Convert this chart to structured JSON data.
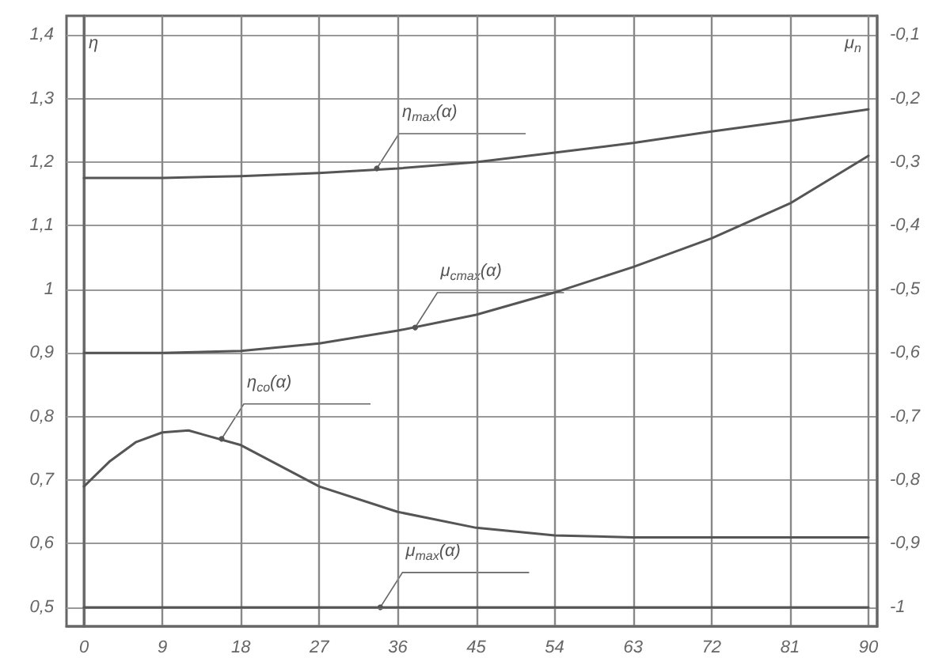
{
  "chart_data": {
    "type": "line",
    "ylabel": "η",
    "y2label": "μ$_{n}$",
    "xlim": [
      -2,
      91
    ],
    "xticks": [
      0,
      9,
      18,
      27,
      36,
      45,
      54,
      63,
      72,
      81,
      90
    ],
    "ylim": [
      0.47,
      1.43
    ],
    "yticks": [
      {
        "value": 0.5,
        "label": "0,5"
      },
      {
        "value": 0.6,
        "label": "0,6"
      },
      {
        "value": 0.7,
        "label": "0,7"
      },
      {
        "value": 0.8,
        "label": "0,8"
      },
      {
        "value": 0.9,
        "label": "0,9"
      },
      {
        "value": 1,
        "label": "1"
      },
      {
        "value": 1.1,
        "label": "1,1"
      },
      {
        "value": 1.2,
        "label": "1,2"
      },
      {
        "value": 1.3,
        "label": "1,3"
      },
      {
        "value": 1.4,
        "label": "1,4"
      }
    ],
    "y2lim": [
      -1.03,
      -0.07
    ],
    "y2ticks": [
      {
        "value": -1,
        "label": "-1"
      },
      {
        "value": -0.9,
        "label": "-0,9"
      },
      {
        "value": -0.8,
        "label": "-0,8"
      },
      {
        "value": -0.7,
        "label": "-0,7"
      },
      {
        "value": -0.6,
        "label": "-0,6"
      },
      {
        "value": -0.5,
        "label": "-0,5"
      },
      {
        "value": -0.4,
        "label": "-0,4"
      },
      {
        "value": -0.3,
        "label": "-0,3"
      },
      {
        "value": -0.2,
        "label": "-0,2"
      },
      {
        "value": -0.1,
        "label": "-0,1"
      }
    ],
    "series": [
      {
        "color": "#555555",
        "x": [
          0,
          9,
          18,
          27,
          36,
          45,
          54,
          63,
          72,
          81,
          90
        ],
        "values": [
          1.175,
          1.175,
          1.178,
          1.183,
          1.19,
          1.2,
          1.215,
          1.23,
          1.248,
          1.265,
          1.283
        ]
      },
      {
        "color": "#555555",
        "axis": "y2",
        "x": [
          0,
          9,
          18,
          27,
          36,
          45,
          54,
          63,
          72,
          81,
          90
        ],
        "values": [
          -0.6,
          -0.6,
          -0.597,
          -0.585,
          -0.565,
          -0.54,
          -0.505,
          -0.465,
          -0.42,
          -0.365,
          -0.29
        ]
      },
      {
        "color": "#555555",
        "x": [
          0,
          3,
          6,
          9,
          12,
          18,
          27,
          36,
          45,
          54,
          63,
          72,
          81,
          90
        ],
        "values": [
          0.69,
          0.73,
          0.76,
          0.775,
          0.778,
          0.755,
          0.69,
          0.65,
          0.625,
          0.613,
          0.61,
          0.61,
          0.61,
          0.61
        ]
      },
      {
        "color": "#555555",
        "axis": "y2",
        "x": [
          0,
          90
        ],
        "values": [
          -1,
          -1
        ]
      }
    ],
    "annotations": [
      {
        "text": "η$_{max}$(α)",
        "x": 33.6,
        "y": 1.19
      },
      {
        "text": "μ$_{cmax}$(α)",
        "x": 38,
        "y": 0.94
      },
      {
        "text": "η$_{co}$(α)",
        "x": 15.8,
        "y": 0.765
      },
      {
        "text": "μ$_{max}$(α)",
        "x": 34,
        "y": 0.5
      }
    ],
    "grid": true,
    "marker": "none",
    "line_style": "solid"
  }
}
